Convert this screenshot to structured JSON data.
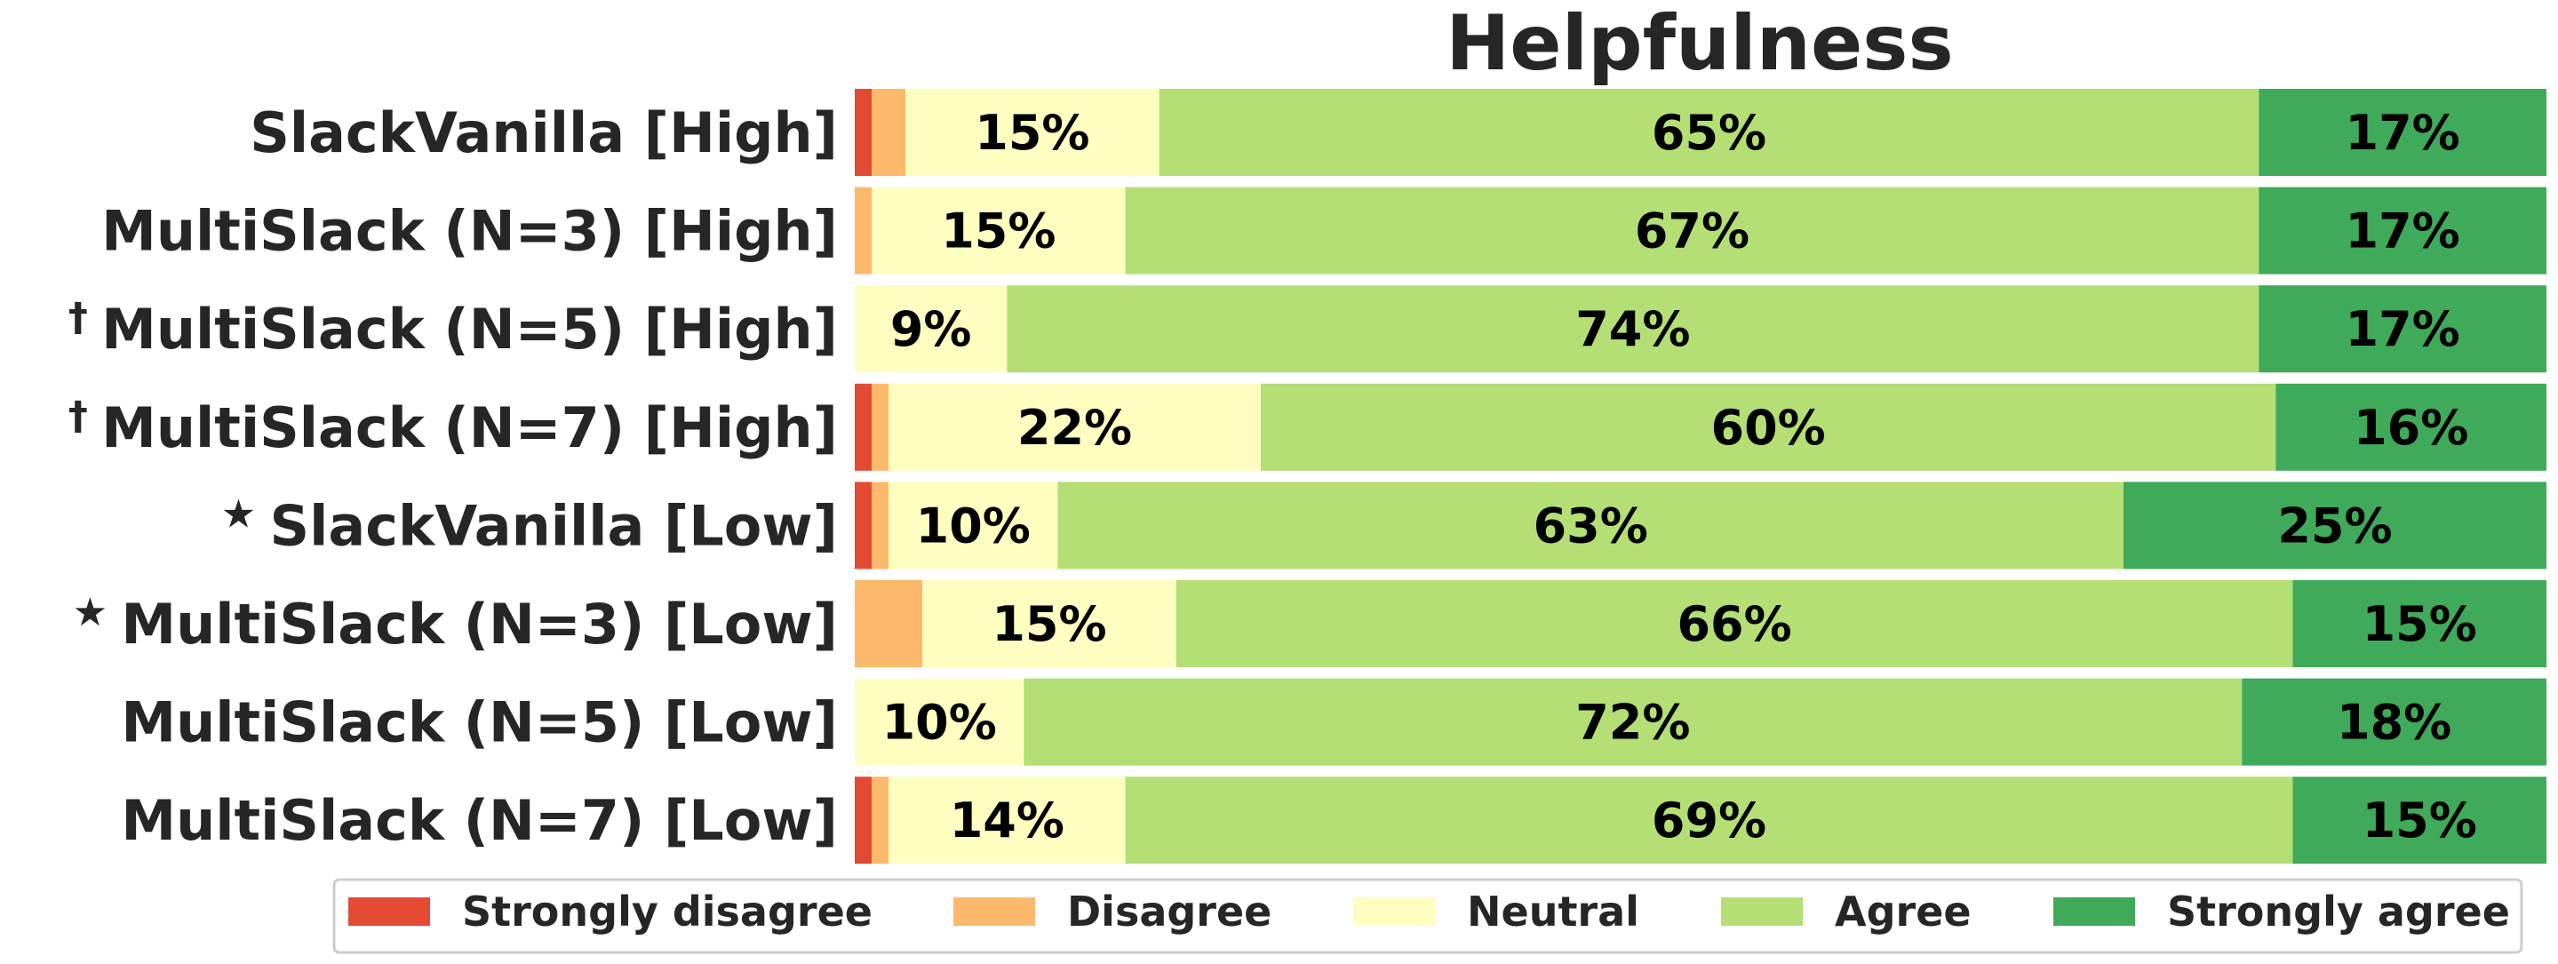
{
  "chart_data": {
    "type": "bar",
    "orientation": "horizontal-stacked",
    "title": "Helpfulness",
    "categories": [
      {
        "marker": "",
        "label": "SlackVanilla [High]"
      },
      {
        "marker": "",
        "label": "MultiSlack (N=3) [High]"
      },
      {
        "marker": "†",
        "label": "MultiSlack (N=5) [High]"
      },
      {
        "marker": "†",
        "label": "MultiSlack (N=7) [High]"
      },
      {
        "marker": "★",
        "label": "SlackVanilla [Low]"
      },
      {
        "marker": "★",
        "label": "MultiSlack (N=3) [Low]"
      },
      {
        "marker": "",
        "label": "MultiSlack (N=5) [Low]"
      },
      {
        "marker": "",
        "label": "MultiSlack (N=7) [Low]"
      }
    ],
    "series": [
      {
        "name": "Strongly disagree",
        "color": "#e34a33",
        "values": [
          1,
          0,
          0,
          1,
          1,
          0,
          0,
          1
        ]
      },
      {
        "name": "Disagree",
        "color": "#fdb96b",
        "values": [
          2,
          1,
          0,
          1,
          1,
          4,
          0,
          1
        ]
      },
      {
        "name": "Neutral",
        "color": "#fefec0",
        "values": [
          15,
          15,
          9,
          22,
          10,
          15,
          10,
          14
        ]
      },
      {
        "name": "Agree",
        "color": "#b3df74",
        "values": [
          65,
          67,
          74,
          60,
          63,
          66,
          72,
          69
        ]
      },
      {
        "name": "Strongly agree",
        "color": "#3faa59",
        "values": [
          17,
          17,
          17,
          16,
          25,
          15,
          18,
          15
        ]
      }
    ],
    "label_threshold": 5,
    "value_unit": "%",
    "xlim": [
      0,
      100
    ],
    "legend": "bottom"
  }
}
